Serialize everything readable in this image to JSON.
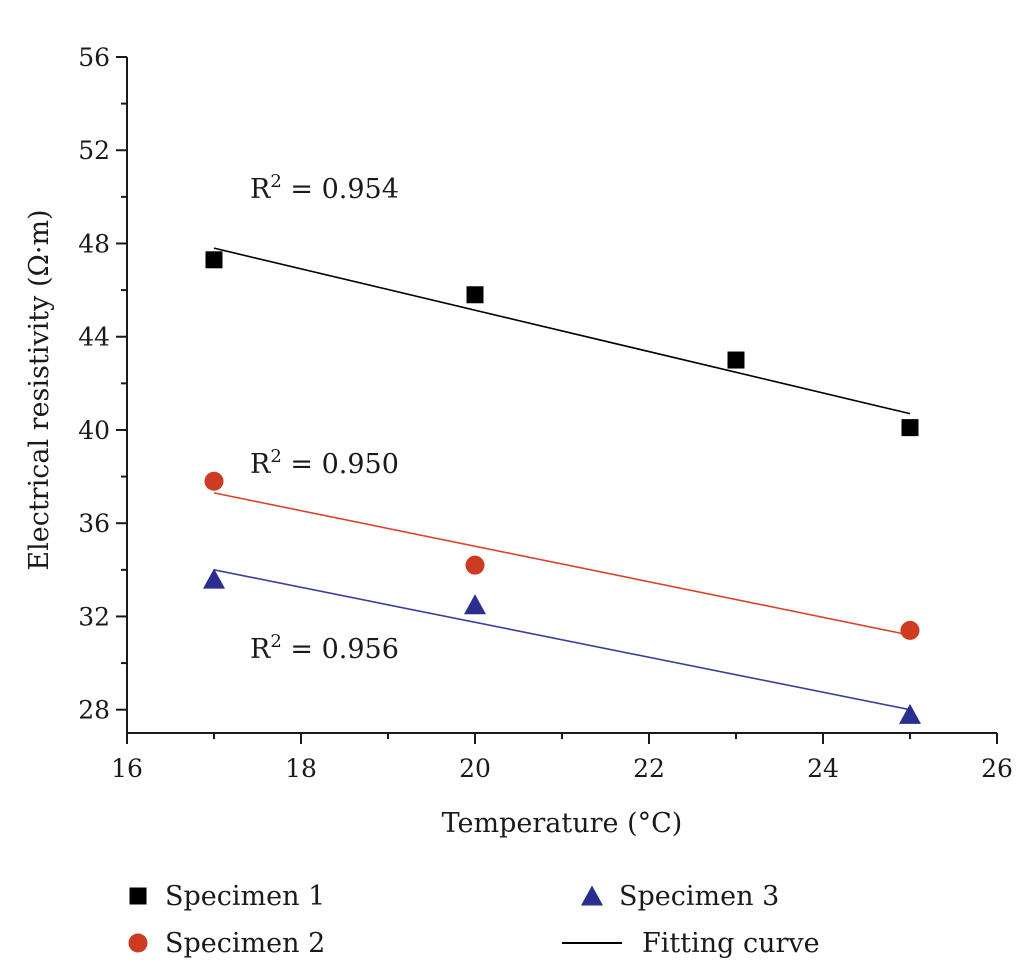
{
  "chart_data": {
    "type": "scatter",
    "xlabel": "Temperature (°C)",
    "ylabel": "Electrical resistivity (Ω·m)",
    "xlim": [
      16,
      26
    ],
    "ylim": [
      27,
      56
    ],
    "xticks": [
      16,
      18,
      20,
      22,
      24,
      26
    ],
    "yticks": [
      28,
      32,
      36,
      40,
      44,
      48,
      52,
      56
    ],
    "grid": false,
    "legend_position": "bottom",
    "series": [
      {
        "name": "Specimen 1",
        "marker": "square",
        "color": "#000000",
        "x": [
          17,
          20,
          23,
          25
        ],
        "y": [
          47.3,
          45.8,
          43.0,
          40.1
        ],
        "fit": {
          "x": [
            17,
            25
          ],
          "y": [
            47.8,
            40.7
          ],
          "color": "#000000",
          "r2_label": "R",
          "r2_sup": "2",
          "r2_value": " = 0.954"
        }
      },
      {
        "name": "Specimen 2",
        "marker": "circle",
        "color": "#cc3b22",
        "x": [
          17,
          20,
          25
        ],
        "y": [
          37.8,
          34.2,
          31.4
        ],
        "fit": {
          "x": [
            17,
            25
          ],
          "y": [
            37.3,
            31.2
          ],
          "color": "#d9442b",
          "r2_label": "R",
          "r2_sup": "2",
          "r2_value": " = 0.950"
        }
      },
      {
        "name": "Specimen 3",
        "marker": "triangle",
        "color": "#2a2e8f",
        "x": [
          17,
          20,
          25
        ],
        "y": [
          33.6,
          32.5,
          27.8
        ],
        "fit": {
          "x": [
            17,
            25
          ],
          "y": [
            34.0,
            28.0
          ],
          "color": "#3a3f9c",
          "r2_label": "R",
          "r2_sup": "2",
          "r2_value": " = 0.956"
        }
      }
    ],
    "legend": [
      {
        "label": "Specimen 1",
        "marker": "square",
        "color": "#000000"
      },
      {
        "label": "Specimen 3",
        "marker": "triangle",
        "color": "#2a2e8f"
      },
      {
        "label": "Specimen 2",
        "marker": "circle",
        "color": "#cc3b22"
      },
      {
        "label": "Fitting curve",
        "marker": "line",
        "color": "#000000"
      }
    ]
  }
}
